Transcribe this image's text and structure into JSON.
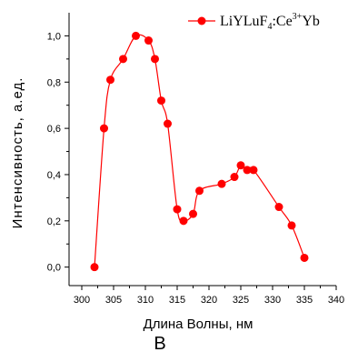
{
  "chart_data": {
    "type": "line",
    "xlabel": "Длина Волны, нм",
    "ylabel": "Интенсивность, а.ед.",
    "xlim": [
      298,
      340
    ],
    "ylim": [
      -0.08,
      1.1
    ],
    "xticks": [
      "300",
      "305",
      "310",
      "315",
      "320",
      "325",
      "330",
      "335",
      "340"
    ],
    "yticks": [
      "0,0",
      "0,2",
      "0,4",
      "0,6",
      "0,8",
      "1,0"
    ],
    "legend": {
      "base": "LiYLuF",
      "sub": "4",
      "mid": ":Ce",
      "sup": "3+",
      "end": "Yb",
      "position": "top-right"
    },
    "panel_label": "B",
    "series": [
      {
        "name": "LiYLuF4:Ce3+Yb",
        "color": "#ff0000",
        "points": [
          [
            302,
            0.0
          ],
          [
            303.5,
            0.6
          ],
          [
            304.5,
            0.81
          ],
          [
            306.5,
            0.9
          ],
          [
            308.5,
            1.0
          ],
          [
            310.5,
            0.98
          ],
          [
            311.5,
            0.9
          ],
          [
            312.5,
            0.72
          ],
          [
            313.5,
            0.62
          ],
          [
            315,
            0.25
          ],
          [
            316,
            0.2
          ],
          [
            317.5,
            0.23
          ],
          [
            318.5,
            0.33
          ],
          [
            322,
            0.36
          ],
          [
            324,
            0.39
          ],
          [
            325,
            0.44
          ],
          [
            326,
            0.42
          ],
          [
            327,
            0.42
          ],
          [
            331,
            0.26
          ],
          [
            333,
            0.18
          ],
          [
            335,
            0.04
          ]
        ]
      }
    ]
  }
}
